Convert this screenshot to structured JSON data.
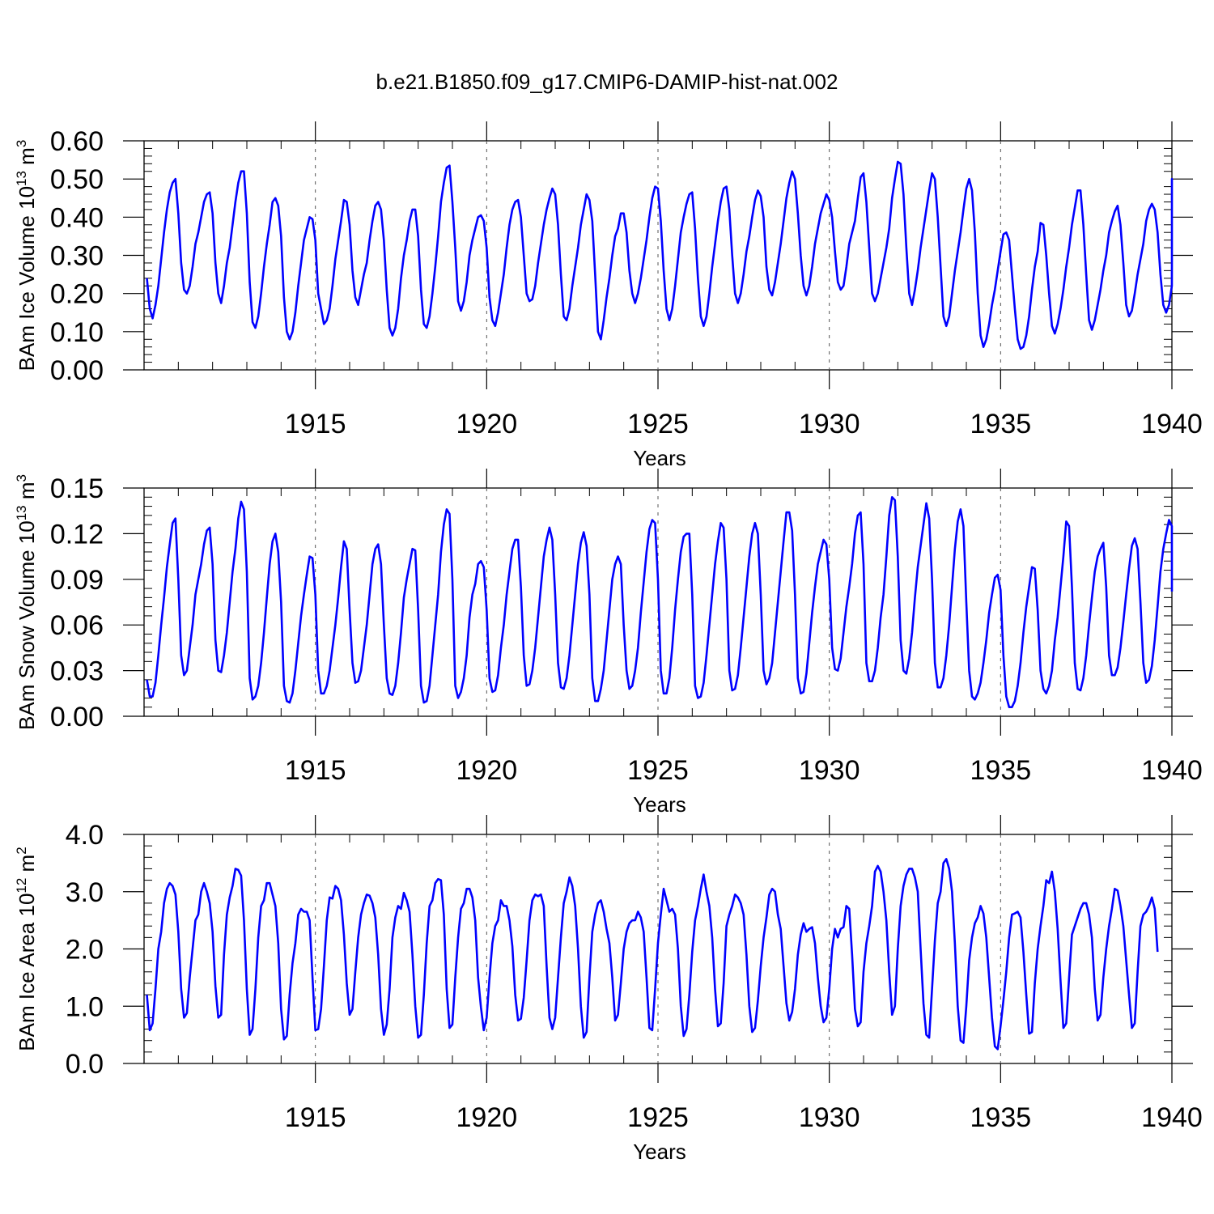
{
  "title": "b.e21.B1850.f09_g17.CMIP6-DAMIP-hist-nat.002",
  "colors": {
    "line": "#0000ff",
    "axis": "#000000",
    "refline": "#555555"
  },
  "chart_data": [
    {
      "type": "line",
      "ylabel": "BAm Ice Volume",
      "ylabel_unit_base": "10",
      "ylabel_unit_exp": "13",
      "ylabel_unit_suffix": "m",
      "ylabel_unit_suffix_exp": "3",
      "xlabel": "Years",
      "xlim": [
        1910.083,
        1940.0
      ],
      "ylim": [
        0.0,
        0.6
      ],
      "yticks": [
        0.0,
        0.1,
        0.2,
        0.3,
        0.4,
        0.5,
        0.6
      ],
      "ytick_labels": [
        "0.00",
        "0.10",
        "0.20",
        "0.30",
        "0.40",
        "0.50",
        "0.60"
      ],
      "xticks": [
        1915,
        1920,
        1925,
        1930,
        1935,
        1940
      ],
      "xtick_labels": [
        "1915",
        "1920",
        "1925",
        "1930",
        "1935",
        "1940"
      ],
      "x_start": 1910.083,
      "x_step": 0.08333,
      "values": [
        0.24,
        0.16,
        0.135,
        0.17,
        0.22,
        0.29,
        0.36,
        0.42,
        0.465,
        0.49,
        0.5,
        0.41,
        0.28,
        0.21,
        0.2,
        0.22,
        0.27,
        0.33,
        0.36,
        0.4,
        0.44,
        0.46,
        0.465,
        0.41,
        0.28,
        0.2,
        0.175,
        0.22,
        0.28,
        0.32,
        0.38,
        0.44,
        0.49,
        0.52,
        0.52,
        0.41,
        0.23,
        0.125,
        0.11,
        0.14,
        0.2,
        0.27,
        0.33,
        0.38,
        0.44,
        0.45,
        0.43,
        0.35,
        0.19,
        0.1,
        0.08,
        0.1,
        0.15,
        0.22,
        0.28,
        0.34,
        0.37,
        0.4,
        0.395,
        0.34,
        0.2,
        0.16,
        0.12,
        0.13,
        0.16,
        0.22,
        0.29,
        0.34,
        0.39,
        0.445,
        0.44,
        0.38,
        0.26,
        0.19,
        0.17,
        0.21,
        0.25,
        0.28,
        0.34,
        0.39,
        0.43,
        0.44,
        0.42,
        0.34,
        0.21,
        0.11,
        0.09,
        0.11,
        0.16,
        0.24,
        0.3,
        0.34,
        0.39,
        0.42,
        0.42,
        0.35,
        0.21,
        0.12,
        0.11,
        0.14,
        0.2,
        0.27,
        0.35,
        0.44,
        0.49,
        0.53,
        0.535,
        0.44,
        0.32,
        0.18,
        0.155,
        0.18,
        0.23,
        0.3,
        0.34,
        0.37,
        0.4,
        0.405,
        0.39,
        0.32,
        0.19,
        0.13,
        0.115,
        0.15,
        0.2,
        0.25,
        0.32,
        0.38,
        0.42,
        0.44,
        0.445,
        0.4,
        0.3,
        0.2,
        0.18,
        0.185,
        0.22,
        0.28,
        0.33,
        0.38,
        0.42,
        0.45,
        0.475,
        0.46,
        0.38,
        0.25,
        0.14,
        0.13,
        0.16,
        0.22,
        0.27,
        0.32,
        0.38,
        0.42,
        0.46,
        0.445,
        0.39,
        0.25,
        0.1,
        0.08,
        0.13,
        0.19,
        0.24,
        0.3,
        0.35,
        0.37,
        0.41,
        0.41,
        0.36,
        0.26,
        0.2,
        0.175,
        0.2,
        0.24,
        0.29,
        0.34,
        0.4,
        0.45,
        0.48,
        0.475,
        0.39,
        0.26,
        0.16,
        0.13,
        0.16,
        0.22,
        0.29,
        0.36,
        0.4,
        0.435,
        0.46,
        0.465,
        0.37,
        0.24,
        0.14,
        0.115,
        0.14,
        0.2,
        0.27,
        0.33,
        0.39,
        0.44,
        0.475,
        0.48,
        0.42,
        0.3,
        0.2,
        0.175,
        0.2,
        0.25,
        0.31,
        0.35,
        0.4,
        0.445,
        0.47,
        0.455,
        0.4,
        0.27,
        0.21,
        0.195,
        0.23,
        0.28,
        0.33,
        0.39,
        0.45,
        0.49,
        0.52,
        0.5,
        0.41,
        0.3,
        0.22,
        0.195,
        0.22,
        0.27,
        0.33,
        0.37,
        0.41,
        0.435,
        0.46,
        0.445,
        0.4,
        0.31,
        0.23,
        0.21,
        0.22,
        0.27,
        0.33,
        0.36,
        0.39,
        0.45,
        0.505,
        0.515,
        0.44,
        0.32,
        0.2,
        0.18,
        0.2,
        0.24,
        0.28,
        0.32,
        0.37,
        0.45,
        0.5,
        0.545,
        0.54,
        0.46,
        0.32,
        0.2,
        0.17,
        0.21,
        0.26,
        0.32,
        0.37,
        0.42,
        0.47,
        0.515,
        0.5,
        0.4,
        0.27,
        0.14,
        0.115,
        0.14,
        0.2,
        0.26,
        0.31,
        0.36,
        0.42,
        0.475,
        0.5,
        0.47,
        0.36,
        0.2,
        0.09,
        0.06,
        0.08,
        0.12,
        0.17,
        0.21,
        0.26,
        0.31,
        0.355,
        0.36,
        0.34,
        0.25,
        0.16,
        0.08,
        0.055,
        0.06,
        0.09,
        0.14,
        0.21,
        0.27,
        0.31,
        0.385,
        0.38,
        0.3,
        0.2,
        0.115,
        0.095,
        0.12,
        0.16,
        0.21,
        0.27,
        0.32,
        0.38,
        0.425,
        0.47,
        0.47,
        0.38,
        0.25,
        0.13,
        0.105,
        0.13,
        0.17,
        0.21,
        0.26,
        0.3,
        0.36,
        0.39,
        0.415,
        0.43,
        0.38,
        0.28,
        0.17,
        0.14,
        0.155,
        0.2,
        0.25,
        0.29,
        0.33,
        0.39,
        0.42,
        0.435,
        0.42,
        0.36,
        0.25,
        0.17,
        0.15,
        0.17,
        0.22,
        0.28,
        0.33,
        0.39,
        0.43,
        0.46,
        0.5,
        0.49,
        0.4
      ]
    },
    {
      "type": "line",
      "ylabel": "BAm Snow Volume",
      "ylabel_unit_base": "10",
      "ylabel_unit_exp": "13",
      "ylabel_unit_suffix": "m",
      "ylabel_unit_suffix_exp": "3",
      "xlabel": "Years",
      "xlim": [
        1910.083,
        1940.0
      ],
      "ylim": [
        0.0,
        0.15
      ],
      "yticks": [
        0.0,
        0.03,
        0.06,
        0.09,
        0.12,
        0.15
      ],
      "ytick_labels": [
        "0.00",
        "0.03",
        "0.06",
        "0.09",
        "0.12",
        "0.15"
      ],
      "xticks": [
        1915,
        1920,
        1925,
        1930,
        1935,
        1940
      ],
      "xtick_labels": [
        "1915",
        "1920",
        "1925",
        "1930",
        "1935",
        "1940"
      ],
      "x_start": 1910.083,
      "x_step": 0.08333,
      "values": [
        0.024,
        0.013,
        0.013,
        0.022,
        0.04,
        0.06,
        0.078,
        0.098,
        0.113,
        0.127,
        0.13,
        0.09,
        0.04,
        0.027,
        0.03,
        0.045,
        0.06,
        0.08,
        0.09,
        0.1,
        0.113,
        0.122,
        0.124,
        0.1,
        0.05,
        0.03,
        0.029,
        0.04,
        0.055,
        0.075,
        0.095,
        0.11,
        0.13,
        0.141,
        0.136,
        0.095,
        0.025,
        0.011,
        0.013,
        0.02,
        0.035,
        0.055,
        0.078,
        0.1,
        0.115,
        0.12,
        0.108,
        0.075,
        0.02,
        0.01,
        0.009,
        0.015,
        0.03,
        0.048,
        0.066,
        0.08,
        0.093,
        0.105,
        0.104,
        0.08,
        0.03,
        0.015,
        0.015,
        0.02,
        0.03,
        0.045,
        0.06,
        0.078,
        0.098,
        0.115,
        0.11,
        0.07,
        0.035,
        0.022,
        0.023,
        0.03,
        0.045,
        0.06,
        0.08,
        0.1,
        0.11,
        0.113,
        0.1,
        0.06,
        0.025,
        0.015,
        0.014,
        0.02,
        0.035,
        0.055,
        0.078,
        0.09,
        0.1,
        0.11,
        0.109,
        0.07,
        0.02,
        0.009,
        0.01,
        0.02,
        0.04,
        0.06,
        0.08,
        0.108,
        0.126,
        0.136,
        0.133,
        0.09,
        0.02,
        0.012,
        0.016,
        0.025,
        0.04,
        0.065,
        0.08,
        0.087,
        0.1,
        0.102,
        0.098,
        0.07,
        0.025,
        0.016,
        0.017,
        0.027,
        0.045,
        0.06,
        0.08,
        0.095,
        0.11,
        0.116,
        0.116,
        0.085,
        0.04,
        0.02,
        0.021,
        0.03,
        0.045,
        0.065,
        0.085,
        0.105,
        0.116,
        0.124,
        0.116,
        0.08,
        0.035,
        0.019,
        0.018,
        0.025,
        0.04,
        0.06,
        0.08,
        0.1,
        0.114,
        0.121,
        0.112,
        0.08,
        0.025,
        0.01,
        0.01,
        0.018,
        0.03,
        0.05,
        0.07,
        0.09,
        0.1,
        0.105,
        0.1,
        0.06,
        0.03,
        0.018,
        0.02,
        0.03,
        0.045,
        0.068,
        0.088,
        0.108,
        0.123,
        0.129,
        0.127,
        0.09,
        0.03,
        0.015,
        0.015,
        0.025,
        0.045,
        0.07,
        0.09,
        0.108,
        0.118,
        0.12,
        0.12,
        0.08,
        0.02,
        0.012,
        0.013,
        0.022,
        0.04,
        0.06,
        0.08,
        0.1,
        0.115,
        0.127,
        0.124,
        0.09,
        0.03,
        0.017,
        0.018,
        0.027,
        0.045,
        0.065,
        0.085,
        0.105,
        0.12,
        0.127,
        0.12,
        0.08,
        0.03,
        0.021,
        0.025,
        0.035,
        0.055,
        0.075,
        0.095,
        0.115,
        0.134,
        0.134,
        0.122,
        0.08,
        0.025,
        0.015,
        0.016,
        0.028,
        0.048,
        0.068,
        0.085,
        0.1,
        0.108,
        0.116,
        0.113,
        0.09,
        0.045,
        0.031,
        0.03,
        0.038,
        0.055,
        0.072,
        0.085,
        0.1,
        0.12,
        0.132,
        0.134,
        0.1,
        0.035,
        0.023,
        0.023,
        0.03,
        0.045,
        0.065,
        0.08,
        0.105,
        0.132,
        0.144,
        0.142,
        0.105,
        0.05,
        0.03,
        0.028,
        0.038,
        0.055,
        0.078,
        0.098,
        0.112,
        0.126,
        0.14,
        0.13,
        0.09,
        0.035,
        0.019,
        0.019,
        0.025,
        0.04,
        0.06,
        0.085,
        0.11,
        0.128,
        0.136,
        0.125,
        0.075,
        0.03,
        0.013,
        0.011,
        0.015,
        0.022,
        0.035,
        0.05,
        0.068,
        0.08,
        0.091,
        0.093,
        0.083,
        0.04,
        0.013,
        0.006,
        0.006,
        0.01,
        0.02,
        0.035,
        0.055,
        0.072,
        0.085,
        0.098,
        0.097,
        0.07,
        0.03,
        0.018,
        0.015,
        0.02,
        0.03,
        0.05,
        0.065,
        0.085,
        0.105,
        0.128,
        0.125,
        0.085,
        0.035,
        0.018,
        0.017,
        0.025,
        0.04,
        0.06,
        0.078,
        0.095,
        0.105,
        0.11,
        0.114,
        0.085,
        0.04,
        0.027,
        0.027,
        0.032,
        0.045,
        0.062,
        0.08,
        0.097,
        0.112,
        0.117,
        0.11,
        0.075,
        0.035,
        0.022,
        0.024,
        0.033,
        0.05,
        0.072,
        0.095,
        0.11,
        0.12,
        0.129,
        0.125,
        0.082
      ]
    },
    {
      "type": "line",
      "ylabel": "BAm Ice Area",
      "ylabel_unit_base": "10",
      "ylabel_unit_exp": "12",
      "ylabel_unit_suffix": "m",
      "ylabel_unit_suffix_exp": "2",
      "xlabel": "Years",
      "xlim": [
        1910.083,
        1940.0
      ],
      "ylim": [
        0.0,
        4.0
      ],
      "yticks": [
        0.0,
        1.0,
        2.0,
        3.0,
        4.0
      ],
      "ytick_labels": [
        "0.0",
        "1.0",
        "2.0",
        "3.0",
        "4.0"
      ],
      "xticks": [
        1915,
        1920,
        1925,
        1930,
        1935,
        1940
      ],
      "xtick_labels": [
        "1915",
        "1920",
        "1925",
        "1930",
        "1935",
        "1940"
      ],
      "x_start": 1910.083,
      "x_step": 0.08333,
      "values": [
        1.2,
        0.58,
        0.7,
        1.3,
        2.0,
        2.3,
        2.8,
        3.05,
        3.15,
        3.1,
        2.95,
        2.3,
        1.3,
        0.8,
        0.88,
        1.5,
        2.0,
        2.5,
        2.6,
        3.0,
        3.15,
        3.0,
        2.8,
        2.3,
        1.35,
        0.8,
        0.85,
        1.9,
        2.6,
        2.9,
        3.1,
        3.4,
        3.38,
        3.28,
        2.5,
        1.3,
        0.5,
        0.6,
        1.3,
        2.2,
        2.75,
        2.85,
        3.15,
        3.15,
        2.95,
        2.75,
        2.1,
        0.95,
        0.42,
        0.48,
        1.2,
        1.75,
        2.1,
        2.6,
        2.7,
        2.65,
        2.65,
        2.5,
        1.5,
        0.58,
        0.6,
        0.95,
        1.7,
        2.5,
        2.9,
        2.88,
        3.1,
        3.05,
        2.85,
        2.25,
        1.4,
        0.85,
        0.95,
        1.6,
        2.2,
        2.6,
        2.8,
        2.95,
        2.93,
        2.8,
        2.55,
        1.9,
        0.95,
        0.5,
        0.68,
        1.3,
        2.2,
        2.55,
        2.75,
        2.7,
        2.98,
        2.85,
        2.65,
        1.9,
        1.0,
        0.45,
        0.5,
        1.2,
        2.1,
        2.75,
        2.85,
        3.15,
        3.22,
        3.2,
        2.6,
        1.3,
        0.62,
        0.68,
        1.5,
        2.2,
        2.7,
        2.8,
        3.05,
        3.05,
        2.9,
        2.5,
        1.5,
        0.98,
        0.58,
        0.8,
        1.5,
        2.1,
        2.4,
        2.5,
        2.85,
        2.75,
        2.75,
        2.5,
        2.05,
        1.2,
        0.75,
        0.78,
        1.15,
        1.8,
        2.5,
        2.85,
        2.95,
        2.92,
        2.95,
        2.75,
        1.7,
        0.8,
        0.6,
        0.8,
        1.5,
        2.2,
        2.8,
        3.0,
        3.25,
        3.1,
        2.75,
        2.0,
        1.0,
        0.45,
        0.55,
        1.5,
        2.3,
        2.6,
        2.8,
        2.85,
        2.65,
        2.35,
        2.1,
        1.5,
        0.75,
        0.85,
        1.4,
        2.0,
        2.3,
        2.45,
        2.5,
        2.5,
        2.65,
        2.55,
        2.3,
        1.5,
        0.62,
        0.58,
        1.3,
        2.1,
        2.6,
        3.05,
        2.85,
        2.65,
        2.7,
        2.6,
        2.0,
        1.0,
        0.48,
        0.6,
        1.2,
        1.95,
        2.5,
        2.75,
        3.05,
        3.3,
        3.0,
        2.75,
        2.2,
        1.3,
        0.65,
        0.7,
        1.4,
        2.4,
        2.6,
        2.75,
        2.95,
        2.9,
        2.8,
        2.6,
        1.9,
        1.0,
        0.55,
        0.62,
        1.1,
        1.7,
        2.2,
        2.55,
        2.95,
        3.05,
        3.0,
        2.6,
        2.35,
        1.7,
        1.05,
        0.75,
        0.9,
        1.3,
        1.9,
        2.25,
        2.45,
        2.3,
        2.35,
        2.38,
        2.1,
        1.5,
        1.0,
        0.72,
        0.8,
        1.3,
        2.0,
        2.35,
        2.2,
        2.35,
        2.38,
        2.75,
        2.7,
        1.9,
        0.95,
        0.65,
        0.72,
        1.6,
        2.1,
        2.4,
        2.75,
        3.35,
        3.45,
        3.35,
        3.0,
        2.5,
        1.6,
        0.85,
        1.0,
        2.0,
        2.75,
        3.1,
        3.3,
        3.4,
        3.4,
        3.25,
        3.0,
        2.0,
        1.05,
        0.5,
        0.45,
        1.3,
        2.15,
        2.8,
        3.0,
        3.5,
        3.57,
        3.4,
        3.0,
        2.1,
        1.0,
        0.4,
        0.36,
        1.0,
        1.8,
        2.2,
        2.45,
        2.55,
        2.75,
        2.62,
        2.2,
        1.5,
        0.8,
        0.3,
        0.25,
        0.65,
        1.1,
        1.6,
        2.2,
        2.6,
        2.62,
        2.65,
        2.55,
        1.95,
        1.2,
        0.52,
        0.55,
        1.4,
        2.0,
        2.4,
        2.75,
        3.2,
        3.15,
        3.35,
        3.0,
        2.35,
        1.45,
        0.62,
        0.7,
        1.5,
        2.25,
        2.4,
        2.55,
        2.7,
        2.8,
        2.8,
        2.6,
        2.2,
        1.3,
        0.75,
        0.85,
        1.5,
        2.0,
        2.4,
        2.7,
        3.05,
        3.02,
        2.75,
        2.4,
        1.8,
        1.2,
        0.62,
        0.7,
        1.6,
        2.4,
        2.6,
        2.65,
        2.75,
        2.9,
        2.7,
        1.95
      ]
    }
  ]
}
